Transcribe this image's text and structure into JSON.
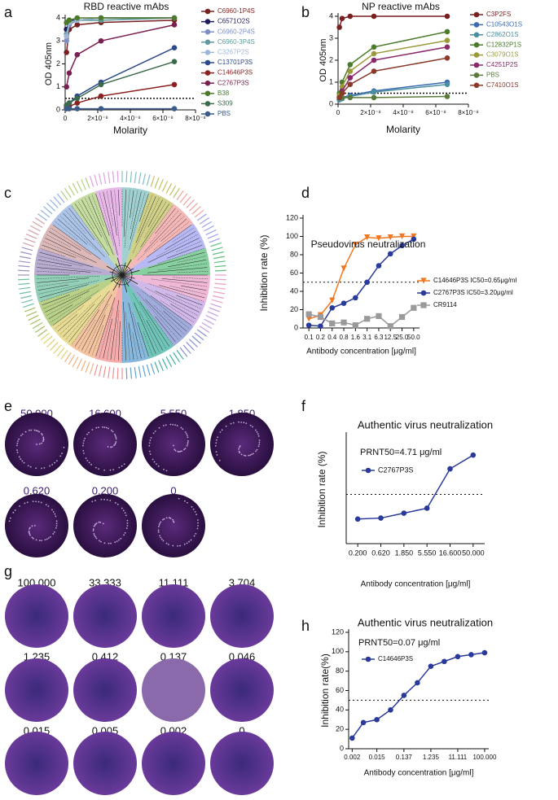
{
  "panel_labels": [
    "a",
    "b",
    "c",
    "d",
    "e",
    "f",
    "g",
    "h"
  ],
  "chart_data": [
    {
      "type": "line",
      "title": "RBD reactive mAbs",
      "xlabel": "Molarity",
      "ylabel": "OD 405nm",
      "x": [
        8.2e-10,
        2.5e-09,
        7.4e-09,
        2.2e-08,
        6.7e-08
      ],
      "xlim": [
        0,
        8e-08
      ],
      "xticks": [
        0,
        {
          "value": 2e-08,
          "label": "2×10⁻⁸"
        },
        {
          "value": 4e-08,
          "label": "4×10⁻⁸"
        },
        {
          "value": 6e-08,
          "label": "6×10⁻⁸"
        },
        {
          "value": 8e-08,
          "label": "8×10⁻⁸"
        }
      ],
      "ylim": [
        0,
        4
      ],
      "yticks": [
        0,
        1,
        2,
        3,
        4
      ],
      "threshold": 0.5,
      "series": [
        {
          "name": "C6960-1P4S",
          "color": "#7a1f1f",
          "values": [
            2.5,
            3.5,
            3.7,
            3.8,
            3.9
          ]
        },
        {
          "name": "C6571O2S",
          "color": "#1c1c5a",
          "values": [
            3.5,
            3.9,
            3.9,
            4.0,
            4.0
          ]
        },
        {
          "name": "C6960-2P4S",
          "color": "#7d8fc4",
          "values": [
            3.0,
            3.7,
            3.9,
            3.9,
            4.0
          ]
        },
        {
          "name": "C6960-3P4S",
          "color": "#5f9b9b",
          "values": [
            3.3,
            3.8,
            3.9,
            3.9,
            4.0
          ]
        },
        {
          "name": "C3267P2S",
          "color": "#9fb6d6",
          "values": [
            3.2,
            3.8,
            3.9,
            4.0,
            4.0
          ]
        },
        {
          "name": "C13701P3S",
          "color": "#2b4a8c",
          "values": [
            0.2,
            0.3,
            0.6,
            1.2,
            2.7
          ]
        },
        {
          "name": "C14646P3S",
          "color": "#8b2020",
          "values": [
            0.1,
            0.15,
            0.3,
            0.6,
            1.1
          ]
        },
        {
          "name": "C2767P3S",
          "color": "#7a2050",
          "values": [
            1.0,
            1.6,
            2.4,
            3.0,
            3.7
          ]
        },
        {
          "name": "B38",
          "color": "#4a7a2a",
          "values": [
            3.8,
            3.9,
            4.0,
            4.0,
            4.0
          ]
        },
        {
          "name": "S309",
          "color": "#3a6a4a",
          "values": [
            0.2,
            0.3,
            0.5,
            1.1,
            2.1
          ]
        },
        {
          "name": "PBS",
          "color": "#3a5a8a",
          "values": [
            0.05,
            0.05,
            0.05,
            0.05,
            0.05
          ]
        }
      ]
    },
    {
      "type": "line",
      "title": "NP reactive mAbs",
      "xlabel": "Molarity",
      "ylabel": "OD 405nm",
      "x": [
        8.2e-10,
        2.5e-09,
        7.4e-09,
        2.2e-08,
        6.7e-08
      ],
      "xlim": [
        0,
        8e-08
      ],
      "xticks": [
        0,
        {
          "value": 2e-08,
          "label": "2×10⁻⁸"
        },
        {
          "value": 4e-08,
          "label": "4×10⁻⁸"
        },
        {
          "value": 6e-08,
          "label": "6×10⁻⁸"
        },
        {
          "value": 8e-08,
          "label": "8×10⁻⁸"
        }
      ],
      "ylim": [
        0,
        4
      ],
      "yticks": [
        0,
        1,
        2,
        3,
        4
      ],
      "threshold": 0.5,
      "series": [
        {
          "name": "C3P2FS",
          "color": "#7a1f1f",
          "values": [
            3.5,
            3.9,
            4.0,
            4.0,
            4.0
          ]
        },
        {
          "name": "C10543O1S",
          "color": "#3a6ab0",
          "values": [
            0.2,
            0.3,
            0.4,
            0.6,
            1.0
          ]
        },
        {
          "name": "C2862O1S",
          "color": "#4a8f9f",
          "values": [
            0.2,
            0.25,
            0.35,
            0.55,
            0.9
          ]
        },
        {
          "name": "C12832P1S",
          "color": "#4a7a2a",
          "values": [
            0.5,
            1.0,
            1.8,
            2.6,
            3.3
          ]
        },
        {
          "name": "C3079O1S",
          "color": "#9a9a3a",
          "values": [
            0.4,
            0.8,
            1.5,
            2.3,
            2.9
          ]
        },
        {
          "name": "C4251P2S",
          "color": "#8a2a6a",
          "values": [
            0.3,
            0.6,
            1.2,
            2.0,
            2.6
          ]
        },
        {
          "name": "PBS",
          "color": "#5a7a3a",
          "values": [
            0.3,
            0.3,
            0.3,
            0.3,
            0.35
          ]
        },
        {
          "name": "C7410O1S",
          "color": "#8b3a2a",
          "values": [
            0.3,
            0.5,
            0.9,
            1.5,
            2.1
          ]
        }
      ]
    },
    {
      "type": "line",
      "title": "Pseudovirus neutralization",
      "xlabel": "Antibody concentration [μg/ml]",
      "ylabel": "Inhibition rate (%)",
      "categories": [
        "0.1",
        "0.2",
        "0.4",
        "0.8",
        "1.6",
        "3.1",
        "6.3",
        "12.5",
        "25.0",
        "50.0"
      ],
      "ylim": [
        0,
        120
      ],
      "yticks": [
        0,
        20,
        40,
        60,
        80,
        100,
        120
      ],
      "threshold": 50,
      "series": [
        {
          "name": "C14646P3S IC50=0.65μg/ml",
          "color": "#f07820",
          "marker": "triangle",
          "values": [
            10,
            14,
            30,
            65,
            91,
            99,
            98,
            99,
            100,
            100
          ]
        },
        {
          "name": "C2767P3S  IC50=3.20μg/ml",
          "color": "#2a3a9a",
          "marker": "circle",
          "values": [
            3,
            2,
            22,
            27,
            33,
            50,
            68,
            81,
            90,
            97
          ]
        },
        {
          "name": "CR9114",
          "color": "#9a9a9a",
          "marker": "square",
          "values": [
            15,
            12,
            5,
            6,
            3,
            10,
            13,
            2,
            12,
            22
          ]
        }
      ]
    },
    {
      "type": "line",
      "title": "Authentic virus neutralization",
      "xlabel": "Antibody concentration [μg/ml]",
      "ylabel": "Inhibition  rate (%)",
      "annotation": "PRNT50=4.71 μg/ml",
      "categories": [
        "0.200",
        "0.620",
        "1.850",
        "5.550",
        "16.600",
        "50.000"
      ],
      "ylim": [
        0,
        110
      ],
      "threshold": 50,
      "series": [
        {
          "name": "C2767P3S",
          "color": "#2a3a9a",
          "marker": "circle",
          "values": [
            25,
            26,
            31,
            36,
            76,
            90
          ]
        }
      ]
    },
    {
      "type": "line",
      "title": "Authentic virus neutralization",
      "xlabel": "Antibody concentration [μg/ml]",
      "ylabel": "Inhibition rate(%)",
      "annotation": "PRNT50=0.07 μg/ml",
      "x": [
        0.002,
        0.005,
        0.015,
        0.046,
        0.137,
        0.412,
        1.235,
        3.704,
        11.111,
        33.333,
        100
      ],
      "xlog": true,
      "xlim": [
        0.0015,
        140
      ],
      "xticks": [
        0.002,
        0.015,
        0.137,
        1.235,
        11.111,
        {
          "value": 100,
          "label": "100.000"
        }
      ],
      "ylim": [
        0,
        120
      ],
      "yticks": [
        0,
        20,
        40,
        60,
        80,
        100,
        120
      ],
      "threshold": 50,
      "series": [
        {
          "name": "C14646P3S",
          "color": "#2a3a9a",
          "marker": "circle",
          "values": [
            11,
            27,
            30,
            40,
            55,
            68,
            85,
            90,
            95,
            97,
            99
          ]
        }
      ]
    }
  ],
  "plates_e": {
    "labels": [
      "50.000",
      "16.600",
      "5.550",
      "1.850",
      "0.620",
      "0.200",
      "0"
    ]
  },
  "plates_g": {
    "labels": [
      "100.000",
      "33.333",
      "11.111",
      "3.704",
      "1.235",
      "0.412",
      "0.137",
      "0.046",
      "0.015",
      "0.005",
      "0.002",
      "0"
    ]
  }
}
